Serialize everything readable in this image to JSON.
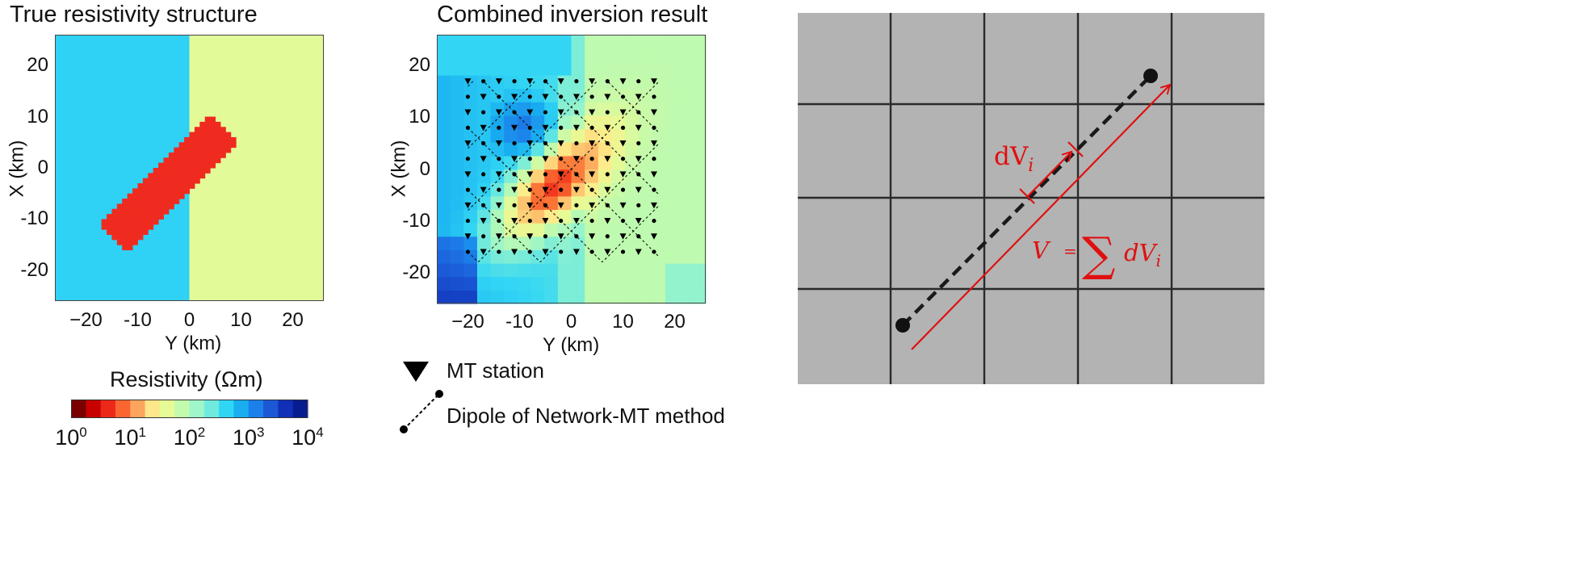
{
  "panels": {
    "left": {
      "title": "True resistivity structure",
      "xlabel": "Y (km)",
      "ylabel": "X (km)",
      "xticks": [
        "−20",
        "-10",
        "0",
        "10",
        "20"
      ],
      "yticks": [
        "20",
        "10",
        "0",
        "-10",
        "-20"
      ]
    },
    "middle": {
      "title": "Combined inversion result",
      "xlabel": "Y (km)",
      "ylabel": "X (km)",
      "xticks": [
        "−20",
        "-10",
        "0",
        "10",
        "20"
      ],
      "yticks": [
        "20",
        "10",
        "0",
        "-10",
        "-20"
      ]
    }
  },
  "colorbar": {
    "label": "Resistivity (Ωm)",
    "base": "10",
    "exponents": [
      "0",
      "1",
      "2",
      "3",
      "4"
    ],
    "colors": [
      "#7a0000",
      "#c80000",
      "#ec2818",
      "#fb6530",
      "#fda45e",
      "#fde78a",
      "#e6fb95",
      "#c2fbad",
      "#9ef6c9",
      "#70eadc",
      "#2fd6f4",
      "#18aef0",
      "#1c80ea",
      "#1c58d6",
      "#1030b8",
      "#081c92"
    ]
  },
  "legend": {
    "mt_station": "MT station",
    "dipole": "Dipole of Network-MT method"
  },
  "diagram": {
    "dv_label_base": "dV",
    "dv_label_sub": "i",
    "sum_lhs": "V",
    "sum_eq": "=",
    "sum_symbol": "∑",
    "sum_term": "dV",
    "sum_sub": "i",
    "background": "#b3b3b3",
    "accent": "#e01010"
  },
  "chart_data": [
    {
      "type": "heatmap",
      "title": "True resistivity structure",
      "xlabel": "Y (km)",
      "ylabel": "X (km)",
      "xlim": [
        -26,
        26
      ],
      "ylim": [
        -26,
        26
      ],
      "regions": [
        {
          "area": "Y < 0",
          "resistivity_ohm_m": 300
        },
        {
          "area": "Y > 0",
          "resistivity_ohm_m": 50
        },
        {
          "area": "diagonal conductor from (Y -15,X -14) to (Y 7,X 8)",
          "resistivity_ohm_m": 3
        }
      ]
    },
    {
      "type": "heatmap",
      "title": "Combined inversion result",
      "xlabel": "Y (km)",
      "ylabel": "X (km)",
      "xlim": [
        -26,
        26
      ],
      "ylim": [
        -26,
        26
      ],
      "mt_station_grid": {
        "x_range": [
          -18,
          17
        ],
        "y_range": [
          -20,
          16
        ],
        "spacing_km": 3
      }
    }
  ]
}
